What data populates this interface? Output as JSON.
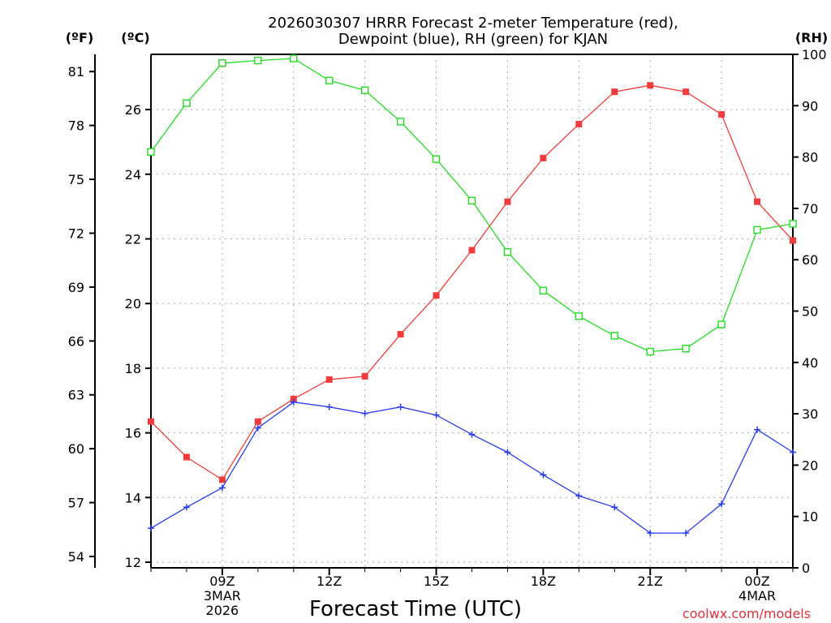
{
  "chart_data": {
    "type": "line",
    "title": [
      "2026030307 HRRR Forecast 2-meter Temperature (red),",
      "Dewpoint (blue), RH (green) for KJAN"
    ],
    "xlabel": "Forecast Time (UTC)",
    "credit": "coolwx.com/models",
    "units": {
      "fahrenheit": "(ºF)",
      "celsius": "(ºC)",
      "rh": "(RH)"
    },
    "x_hours": [
      7,
      8,
      9,
      10,
      11,
      12,
      13,
      14,
      15,
      16,
      17,
      18,
      19,
      20,
      21,
      22,
      23,
      24,
      25
    ],
    "x_ticks": [
      {
        "hour": 9,
        "lines": [
          "09Z",
          "3MAR",
          "2026"
        ]
      },
      {
        "hour": 12,
        "lines": [
          "12Z"
        ]
      },
      {
        "hour": 15,
        "lines": [
          "15Z"
        ]
      },
      {
        "hour": 18,
        "lines": [
          "18Z"
        ]
      },
      {
        "hour": 21,
        "lines": [
          "21Z"
        ]
      },
      {
        "hour": 24,
        "lines": [
          "00Z",
          "4MAR"
        ]
      }
    ],
    "x_range": [
      7,
      25
    ],
    "celsius_range": [
      12,
      27.7
    ],
    "celsius_ticks": [
      "12",
      "14",
      "16",
      "18",
      "20",
      "22",
      "24",
      "26"
    ],
    "fahrenheit_ticks": [
      "54",
      "57",
      "60",
      "63",
      "66",
      "69",
      "72",
      "75",
      "78",
      "81"
    ],
    "rh_range": [
      0,
      100
    ],
    "rh_ticks": [
      "0",
      "10",
      "20",
      "30",
      "40",
      "50",
      "60",
      "70",
      "80",
      "90",
      "100"
    ],
    "grid": true,
    "series": [
      {
        "name": "Temperature",
        "unit": "C",
        "color": "#f03c3c",
        "marker": "filled-square",
        "values": [
          16.35,
          15.25,
          14.55,
          16.35,
          17.05,
          17.65,
          17.75,
          19.05,
          20.25,
          21.65,
          23.15,
          24.5,
          25.55,
          26.55,
          26.75,
          26.55,
          25.85,
          23.15,
          21.95
        ]
      },
      {
        "name": "Dewpoint",
        "unit": "C",
        "color": "#2a3cf0",
        "marker": "plus",
        "values": [
          13.05,
          13.7,
          14.3,
          16.15,
          16.95,
          16.8,
          16.6,
          16.8,
          16.55,
          15.95,
          15.4,
          14.7,
          14.05,
          13.7,
          12.9,
          12.9,
          13.8,
          16.1,
          15.4
        ]
      },
      {
        "name": "RH",
        "unit": "%",
        "color": "#22dd22",
        "marker": "open-square",
        "values": [
          81,
          90.5,
          98.3,
          98.8,
          99.2,
          94.9,
          93.0,
          86.9,
          79.6,
          71.5,
          61.5,
          54.0,
          49.0,
          45.2,
          42.1,
          42.7,
          47.4,
          65.8,
          67.0
        ]
      }
    ]
  }
}
